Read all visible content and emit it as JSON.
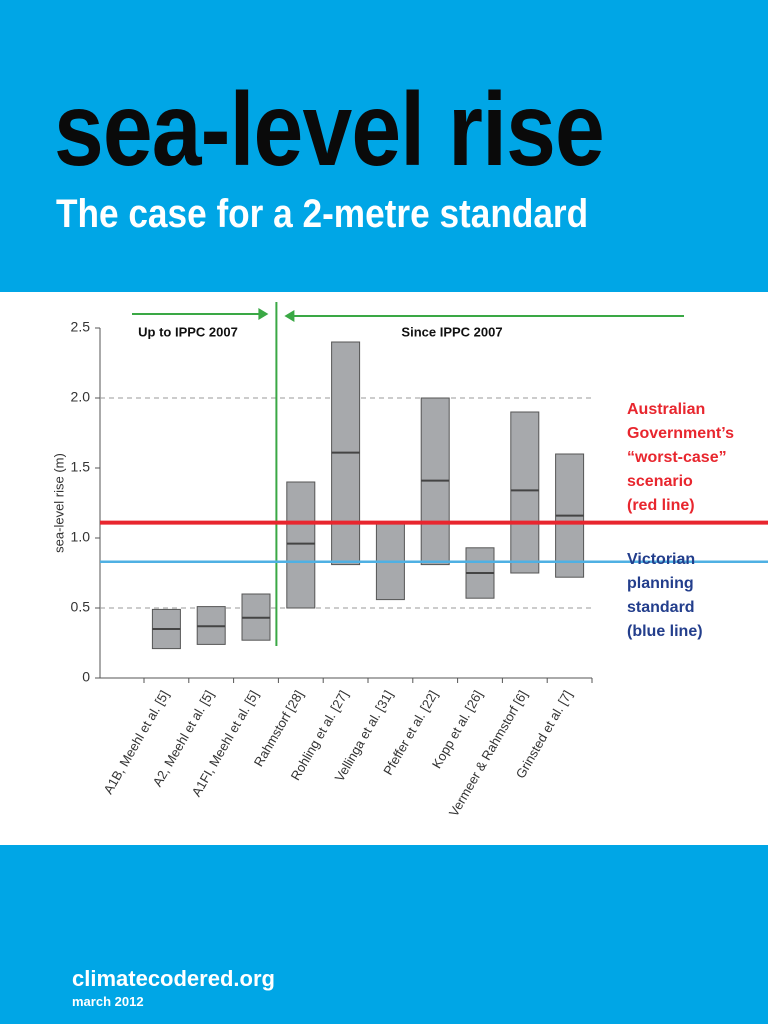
{
  "header": {
    "title": "sea-level rise",
    "subtitle": "The case for a 2-metre standard"
  },
  "chart_data": {
    "type": "floating-box",
    "ylabel": "sea-level rise (m)",
    "categories": [
      "A1B, Meehl et al. [5]",
      "A2, Meehl et al. [5]",
      "A1FI, Meehl et al. [5]",
      "Rahmstorf [28]",
      "Rohling et al. [27]",
      "Vellinga et al. [31]",
      "Pfeffer et al. [22]",
      "Kopp et al. [26]",
      "Vermeer & Rahmstorf [6]",
      "Grinsted et al. [7]"
    ],
    "low": [
      0.21,
      0.24,
      0.27,
      0.5,
      0.81,
      0.56,
      0.81,
      0.57,
      0.75,
      0.72
    ],
    "high": [
      0.49,
      0.51,
      0.6,
      1.4,
      2.4,
      1.1,
      2.0,
      0.93,
      1.9,
      1.6
    ],
    "median": [
      0.35,
      0.37,
      0.43,
      0.96,
      1.61,
      null,
      1.41,
      0.75,
      1.34,
      1.16
    ],
    "box_color": "#a7a9ac",
    "ylim": [
      0,
      2.5
    ],
    "yticks": [
      0,
      0.5,
      {
        "value": 1,
        "label": "1.0"
      },
      1.5,
      {
        "value": 2,
        "label": "2.0"
      },
      2.5
    ],
    "dashed_grid": [
      0.5,
      {
        "value": 2,
        "label": "2.0"
      }
    ],
    "annotations": [
      "Up to IPPC 2007",
      "Since IPPC 2007"
    ],
    "reference_lines": [
      {
        "value": 1.11,
        "color": "#e8262e",
        "label_lines": [
          "Australian",
          "Government’s",
          "“worst-case”",
          "scenario",
          "(red line)"
        ]
      },
      {
        "value": 0.83,
        "color": "#4fb0e3",
        "label_color": "#233e8c",
        "label_lines": [
          "Victorian",
          "planning",
          "standard",
          "(blue line)"
        ]
      }
    ]
  },
  "footer": {
    "site": "climatecodered.org",
    "date": "march 2012"
  }
}
